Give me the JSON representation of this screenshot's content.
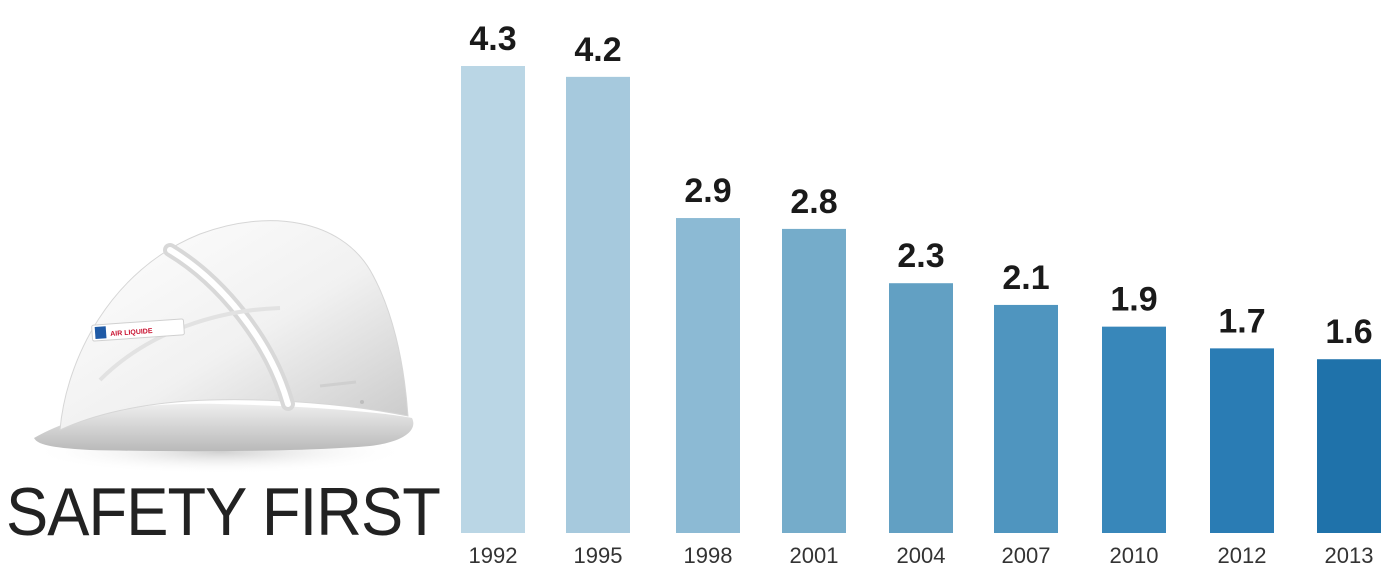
{
  "headline": "SAFETY FIRST",
  "helmet": {
    "logo_text": "AIR LIQUIDE"
  },
  "chart_data": {
    "type": "bar",
    "categories": [
      "1992",
      "1995",
      "1998",
      "2001",
      "2004",
      "2007",
      "2010",
      "2012",
      "2013"
    ],
    "values": [
      4.3,
      4.2,
      2.9,
      2.8,
      2.3,
      2.1,
      1.9,
      1.7,
      1.6
    ],
    "value_labels": [
      "4.3",
      "4.2",
      "2.9",
      "2.8",
      "2.3",
      "2.1",
      "1.9",
      "1.7",
      "1.6"
    ],
    "bar_colors": [
      "#bad6e5",
      "#a6c9dd",
      "#8cbad4",
      "#75acca",
      "#62a0c3",
      "#4f95bf",
      "#3887ba",
      "#2a7cb4",
      "#1f72aa"
    ],
    "ylim": [
      0,
      4.3
    ],
    "grid": false,
    "legend": "none"
  }
}
